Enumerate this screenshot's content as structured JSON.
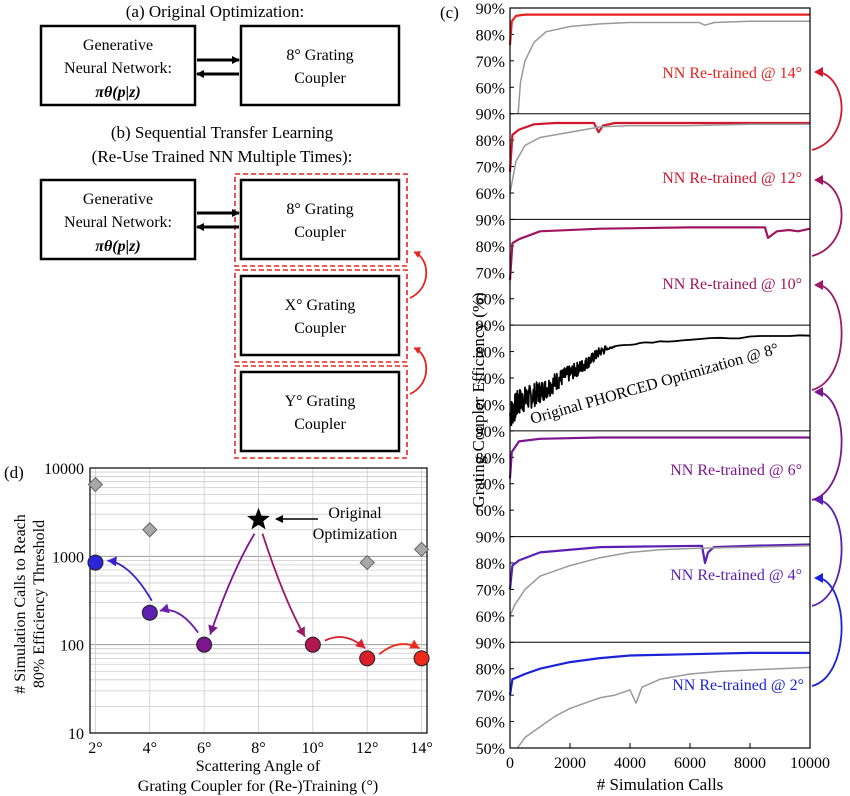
{
  "panel_a": {
    "caption": "(a) Original Optimization:",
    "nn_lines": [
      "Generative",
      "Neural Network:",
      "πθ(p|z)"
    ],
    "coupler_lines": [
      "8° Grating",
      "Coupler"
    ]
  },
  "panel_b": {
    "caption": [
      "(b) Sequential Transfer Learning",
      "(Re-Use Trained NN Multiple Times):"
    ],
    "nn_lines": [
      "Generative",
      "Neural Network:",
      "πθ(p|z)"
    ],
    "couplers": [
      {
        "lines": [
          "8° Grating",
          "Coupler"
        ]
      },
      {
        "lines": [
          "X° Grating",
          "Coupler"
        ]
      },
      {
        "lines": [
          "Y° Grating",
          "Coupler"
        ]
      }
    ]
  },
  "panel_c": {
    "label": "(c)",
    "ylabel": "Grating Coupler Efficiency (%)",
    "xlabel": "# Simulation Calls",
    "xticks": [
      "0",
      "2000",
      "4000",
      "6000",
      "8000",
      "10000"
    ],
    "ytick_labels": [
      "50%",
      "60%",
      "70%",
      "80%",
      "90%"
    ],
    "strip_labels": [
      {
        "text": "NN Re-trained @ 14°",
        "color": "#e8231f"
      },
      {
        "text": "NN Re-trained @ 12°",
        "color": "#d2162e"
      },
      {
        "text": "NN Re-trained @ 10°",
        "color": "#a01560"
      },
      {
        "text": "Original PHORCED Optimization @ 8°",
        "color": "#000000"
      },
      {
        "text": "NN Re-trained @ 6°",
        "color": "#7c168f"
      },
      {
        "text": "NN Re-trained @ 4°",
        "color": "#5a1fb3"
      },
      {
        "text": "NN Re-trained @ 2°",
        "color": "#1a23d8"
      }
    ]
  },
  "panel_d": {
    "label": "(d)",
    "ylabel": [
      "# Simulation Calls to Reach",
      "80% Efficiency Threshold"
    ],
    "xlabel": [
      "Scattering Angle of",
      "Grating Coupler for (Re-)Training (°)"
    ],
    "annotation": [
      "Original",
      "Optimization"
    ],
    "xticks": [
      "2°",
      "4°",
      "6°",
      "8°",
      "10°",
      "12°",
      "14°"
    ],
    "yticks": [
      "10",
      "100",
      "1000",
      "10000"
    ]
  },
  "chart_data": [
    {
      "type": "line",
      "panel": "c",
      "xlabel": "# Simulation Calls",
      "ylabel": "Grating Coupler Efficiency (%)",
      "xlim": [
        0,
        10000
      ],
      "ylim": [
        50,
        90
      ],
      "strips": [
        {
          "name": "NN Re-trained @ 14°",
          "angle": 14,
          "color": "#e8231f",
          "series": [
            {
              "role": "retrained",
              "points": [
                [
                  0,
                  76
                ],
                [
                  60,
                  85
                ],
                [
                  200,
                  87
                ],
                [
                  500,
                  87.5
                ],
                [
                  2000,
                  87.5
                ],
                [
                  6000,
                  87.5
                ],
                [
                  10000,
                  87.5
                ]
              ]
            },
            {
              "role": "gray",
              "points": [
                [
                  270,
                  50
                ],
                [
                  350,
                  62
                ],
                [
                  500,
                  70
                ],
                [
                  800,
                  77
                ],
                [
                  1200,
                  81
                ],
                [
                  2000,
                  83
                ],
                [
                  3000,
                  84
                ],
                [
                  4000,
                  84.5
                ],
                [
                  6300,
                  84.5
                ],
                [
                  6500,
                  83.5
                ],
                [
                  6800,
                  84.5
                ],
                [
                  8000,
                  85
                ],
                [
                  10000,
                  85
                ]
              ]
            }
          ]
        },
        {
          "name": "NN Re-trained @ 12°",
          "angle": 12,
          "color": "#d2162e",
          "series": [
            {
              "role": "retrained",
              "points": [
                [
                  0,
                  68
                ],
                [
                  80,
                  82
                ],
                [
                  300,
                  84
                ],
                [
                  800,
                  86
                ],
                [
                  1500,
                  86.5
                ],
                [
                  2800,
                  86.5
                ],
                [
                  2950,
                  83
                ],
                [
                  3100,
                  85.5
                ],
                [
                  3500,
                  86.5
                ],
                [
                  6000,
                  86.5
                ],
                [
                  8500,
                  86.5
                ],
                [
                  10000,
                  86.5
                ]
              ]
            },
            {
              "role": "gray",
              "points": [
                [
                  0,
                  60
                ],
                [
                  200,
                  72
                ],
                [
                  500,
                  78
                ],
                [
                  1000,
                  81
                ],
                [
                  1500,
                  82
                ],
                [
                  2000,
                  83
                ],
                [
                  3000,
                  85
                ],
                [
                  4000,
                  85.5
                ],
                [
                  6000,
                  85.5
                ],
                [
                  8000,
                  86
                ],
                [
                  10000,
                  86
                ]
              ]
            }
          ]
        },
        {
          "name": "NN Re-trained @ 10°",
          "angle": 10,
          "color": "#a01560",
          "series": [
            {
              "role": "retrained",
              "points": [
                [
                  0,
                  67
                ],
                [
                  80,
                  81
                ],
                [
                  300,
                  82.5
                ],
                [
                  1000,
                  85.5
                ],
                [
                  3000,
                  86.5
                ],
                [
                  6000,
                  87
                ],
                [
                  8500,
                  87
                ],
                [
                  8600,
                  83
                ],
                [
                  8900,
                  85.5
                ],
                [
                  9300,
                  86
                ],
                [
                  9600,
                  85.5
                ],
                [
                  10000,
                  86.5
                ]
              ]
            }
          ]
        },
        {
          "name": "Original PHORCED Optimization @ 8°",
          "angle": 8,
          "color": "#000000",
          "series": [
            {
              "role": "original",
              "points": [
                [
                  0,
                  56
                ],
                [
                  300,
                  61
                ],
                [
                  700,
                  63
                ],
                [
                  1200,
                  66
                ],
                [
                  1700,
                  70
                ],
                [
                  2200,
                  73
                ],
                [
                  2600,
                  76
                ],
                [
                  3000,
                  80
                ],
                [
                  3500,
                  82
                ],
                [
                  4500,
                  83.5
                ],
                [
                  6000,
                  84.5
                ],
                [
                  8000,
                  85.5
                ],
                [
                  10000,
                  86
                ]
              ]
            }
          ]
        },
        {
          "name": "NN Re-trained @ 6°",
          "angle": 6,
          "color": "#7c168f",
          "series": [
            {
              "role": "retrained",
              "points": [
                [
                  0,
                  72
                ],
                [
                  60,
                  82
                ],
                [
                  300,
                  86
                ],
                [
                  1000,
                  87
                ],
                [
                  3000,
                  87.5
                ],
                [
                  10000,
                  87.5
                ]
              ]
            }
          ]
        },
        {
          "name": "NN Re-trained @ 4°",
          "angle": 4,
          "color": "#5a1fb3",
          "series": [
            {
              "role": "retrained",
              "points": [
                [
                  0,
                  70
                ],
                [
                  80,
                  79
                ],
                [
                  300,
                  81
                ],
                [
                  1000,
                  84
                ],
                [
                  3000,
                  86
                ],
                [
                  6400,
                  86.5
                ],
                [
                  6500,
                  80
                ],
                [
                  6600,
                  84
                ],
                [
                  6800,
                  86
                ],
                [
                  8000,
                  86.5
                ],
                [
                  10000,
                  87
                ]
              ]
            },
            {
              "role": "gray",
              "points": [
                [
                  0,
                  60
                ],
                [
                  150,
                  64
                ],
                [
                  500,
                  70
                ],
                [
                  1000,
                  75
                ],
                [
                  2000,
                  79
                ],
                [
                  3000,
                  82
                ],
                [
                  4000,
                  84
                ],
                [
                  5000,
                  85
                ],
                [
                  6000,
                  85.5
                ],
                [
                  8000,
                  86
                ],
                [
                  10000,
                  86.5
                ]
              ]
            }
          ]
        },
        {
          "name": "NN Re-trained @ 2°",
          "angle": 2,
          "color": "#1a23d8",
          "series": [
            {
              "role": "retrained",
              "points": [
                [
                  0,
                  70
                ],
                [
                  80,
                  76
                ],
                [
                  500,
                  78
                ],
                [
                  1000,
                  80
                ],
                [
                  2000,
                  82.5
                ],
                [
                  3000,
                  84
                ],
                [
                  4000,
                  85
                ],
                [
                  6000,
                  85.5
                ],
                [
                  8000,
                  86
                ],
                [
                  10000,
                  86
                ]
              ]
            },
            {
              "role": "gray",
              "points": [
                [
                  250,
                  50
                ],
                [
                  500,
                  54
                ],
                [
                  1000,
                  58
                ],
                [
                  1500,
                  62
                ],
                [
                  2000,
                  65
                ],
                [
                  2500,
                  67
                ],
                [
                  3000,
                  69
                ],
                [
                  3500,
                  70
                ],
                [
                  4000,
                  72
                ],
                [
                  4200,
                  67
                ],
                [
                  4400,
                  73
                ],
                [
                  5000,
                  76
                ],
                [
                  6000,
                  78
                ],
                [
                  7000,
                  79
                ],
                [
                  8000,
                  79.5
                ],
                [
                  10000,
                  80.5
                ]
              ]
            }
          ]
        }
      ]
    },
    {
      "type": "scatter",
      "panel": "d",
      "xlabel": "Scattering Angle of Grating Coupler for (Re-)Training (°)",
      "ylabel": "# Simulation Calls to Reach 80% Efficiency Threshold",
      "xlim": [
        1.8,
        14.2
      ],
      "ylim": [
        10,
        10000
      ],
      "yscale": "log",
      "grid": true,
      "points": [
        {
          "angle": 2,
          "calls": 850,
          "color": "#2b25d8"
        },
        {
          "angle": 4,
          "calls": 230,
          "color": "#5d1fae"
        },
        {
          "angle": 6,
          "calls": 100,
          "color": "#7c168f"
        },
        {
          "angle": 10,
          "calls": 100,
          "color": "#b0164f"
        },
        {
          "angle": 12,
          "calls": 70,
          "color": "#dd1c2a"
        },
        {
          "angle": 14,
          "calls": 70,
          "color": "#ee2a1a"
        }
      ],
      "original": {
        "angle": 8,
        "calls": 2600
      },
      "gray_diamonds": [
        {
          "angle": 2,
          "calls": 6500
        },
        {
          "angle": 4,
          "calls": 2000
        },
        {
          "angle": 12,
          "calls": 850
        },
        {
          "angle": 14,
          "calls": 1200
        }
      ]
    }
  ]
}
